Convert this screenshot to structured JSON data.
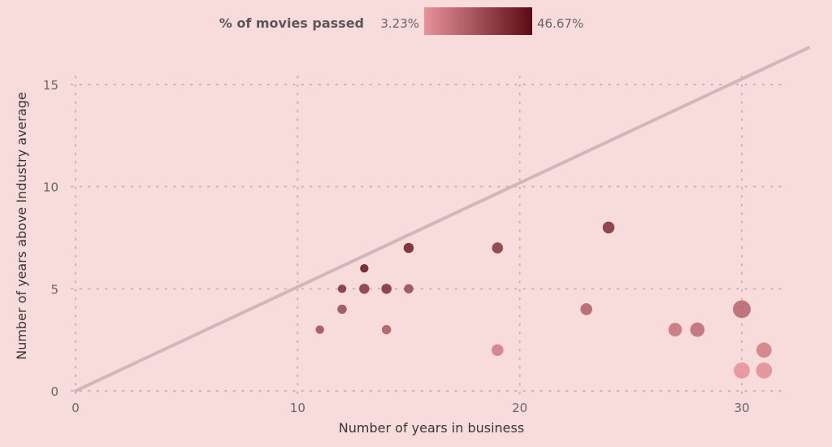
{
  "chart_data": {
    "type": "scatter",
    "title": "",
    "xlabel": "Number of years in business",
    "ylabel": "Number of years above Industry average",
    "xlim": [
      0,
      33
    ],
    "ylim": [
      0,
      16
    ],
    "xticks": [
      "0",
      "10",
      "20",
      "30"
    ],
    "yticks": [
      "0",
      "5",
      "10",
      "15"
    ],
    "grid": true,
    "grid_style": "dotted",
    "legend": {
      "title": "% of movies passed",
      "min_label": "3.23%",
      "max_label": "46.67%",
      "min": 3.23,
      "max": 46.67,
      "color_low": "#e8939b",
      "color_high": "#5c0a12",
      "placement": "top-center"
    },
    "reference_line": {
      "type": "diagonal",
      "x": [
        0,
        33
      ],
      "y": [
        0,
        16.8
      ],
      "color": "#d2b6b8"
    },
    "size_by": "number of movies",
    "points": [
      {
        "x": 11,
        "y": 3,
        "pct": 28,
        "size": 1.0
      },
      {
        "x": 12,
        "y": 4,
        "pct": 30,
        "size": 1.1
      },
      {
        "x": 12,
        "y": 5,
        "pct": 38,
        "size": 1.0
      },
      {
        "x": 13,
        "y": 5,
        "pct": 36,
        "size": 1.2
      },
      {
        "x": 13,
        "y": 6,
        "pct": 46.67,
        "size": 1.0
      },
      {
        "x": 14,
        "y": 3,
        "pct": 24,
        "size": 1.1
      },
      {
        "x": 14,
        "y": 5,
        "pct": 38,
        "size": 1.2
      },
      {
        "x": 15,
        "y": 5,
        "pct": 30,
        "size": 1.1
      },
      {
        "x": 15,
        "y": 7,
        "pct": 44,
        "size": 1.2
      },
      {
        "x": 19,
        "y": 2,
        "pct": 12,
        "size": 1.4
      },
      {
        "x": 19,
        "y": 7,
        "pct": 36,
        "size": 1.3
      },
      {
        "x": 23,
        "y": 4,
        "pct": 22,
        "size": 1.4
      },
      {
        "x": 24,
        "y": 8,
        "pct": 38,
        "size": 1.4
      },
      {
        "x": 27,
        "y": 3,
        "pct": 16,
        "size": 1.6
      },
      {
        "x": 28,
        "y": 3,
        "pct": 18,
        "size": 1.7
      },
      {
        "x": 30,
        "y": 1,
        "pct": 5,
        "size": 1.9
      },
      {
        "x": 30,
        "y": 4,
        "pct": 20,
        "size": 2.1
      },
      {
        "x": 31,
        "y": 1,
        "pct": 6,
        "size": 1.9
      },
      {
        "x": 31,
        "y": 2,
        "pct": 12,
        "size": 1.8
      }
    ]
  }
}
